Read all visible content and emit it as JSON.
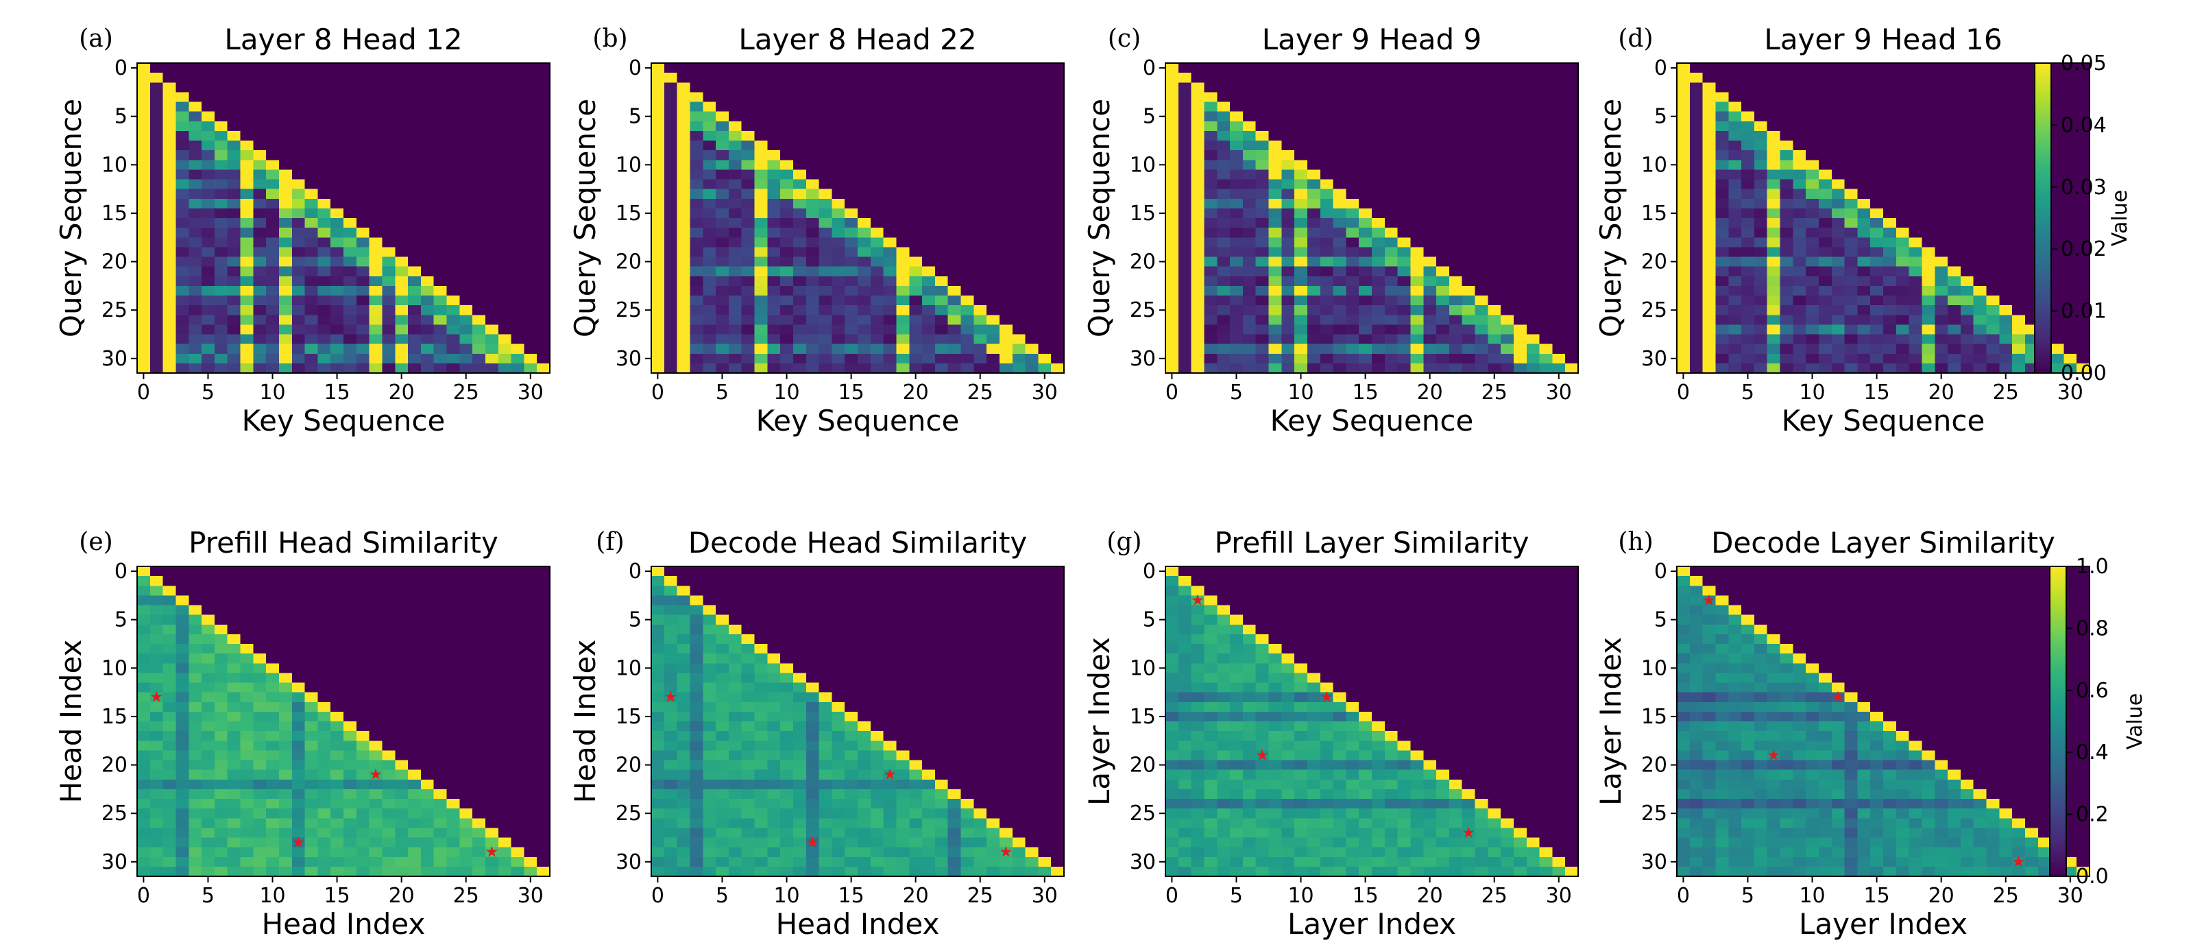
{
  "figure": {
    "colorbar_top": {
      "label": "Value",
      "min": 0.0,
      "max": 0.05,
      "ticks": [
        "0.00",
        "0.01",
        "0.02",
        "0.03",
        "0.04",
        "0.05"
      ]
    },
    "colorbar_bottom": {
      "label": "Value",
      "min": 0.0,
      "max": 1.0,
      "ticks": [
        "0.0",
        "0.2",
        "0.4",
        "0.6",
        "0.8",
        "1.0"
      ]
    },
    "tick_labels": [
      "0",
      "5",
      "10",
      "15",
      "20",
      "25",
      "30"
    ],
    "colormap_colors": [
      "#440154",
      "#482878",
      "#3e4989",
      "#31688e",
      "#26828e",
      "#1f9e89",
      "#35b779",
      "#6ece58",
      "#b5de2b",
      "#fde725"
    ],
    "marker_color": "#e41a1c"
  },
  "chart_data": [
    {
      "type": "heatmap",
      "letter": "(a)",
      "title": "Layer 8 Head 12",
      "xlabel": "Key Sequence",
      "ylabel": "Query Sequence",
      "size": 32,
      "xlim": [
        0,
        31
      ],
      "ylim": [
        31,
        0
      ],
      "vmin": 0.0,
      "vmax": 0.05,
      "sink_columns": [
        0,
        2
      ],
      "hot_columns": [
        8,
        11,
        18,
        20
      ],
      "hot_rows": [
        10,
        12,
        14,
        20,
        23,
        29,
        30
      ],
      "markers": [],
      "seed": 11
    },
    {
      "type": "heatmap",
      "letter": "(b)",
      "title": "Layer 8 Head 22",
      "xlabel": "Key Sequence",
      "ylabel": "Query Sequence",
      "size": 32,
      "xlim": [
        0,
        31
      ],
      "ylim": [
        31,
        0
      ],
      "vmin": 0.0,
      "vmax": 0.05,
      "sink_columns": [
        0,
        2
      ],
      "hot_columns": [
        8,
        19,
        27
      ],
      "hot_rows": [
        10,
        13,
        21,
        29
      ],
      "markers": [],
      "seed": 22
    },
    {
      "type": "heatmap",
      "letter": "(c)",
      "title": "Layer 9 Head 9",
      "xlabel": "Key Sequence",
      "ylabel": "Query Sequence",
      "size": 32,
      "xlim": [
        0,
        31
      ],
      "ylim": [
        31,
        0
      ],
      "vmin": 0.0,
      "vmax": 0.05,
      "sink_columns": [
        0,
        2
      ],
      "hot_columns": [
        8,
        10,
        19,
        27
      ],
      "hot_rows": [
        10,
        14,
        20,
        23,
        29
      ],
      "markers": [],
      "seed": 9
    },
    {
      "type": "heatmap",
      "letter": "(d)",
      "title": "Layer 9 Head 16",
      "xlabel": "Key Sequence",
      "ylabel": "Query Sequence",
      "size": 32,
      "xlim": [
        0,
        31
      ],
      "ylim": [
        31,
        0
      ],
      "vmin": 0.0,
      "vmax": 0.05,
      "sink_columns": [
        0,
        2
      ],
      "hot_columns": [
        7,
        19,
        26
      ],
      "hot_rows": [
        10,
        20,
        27
      ],
      "markers": [],
      "seed": 16
    },
    {
      "type": "heatmap",
      "letter": "(e)",
      "title": "Prefill Head Similarity",
      "xlabel": "Head Index",
      "ylabel": "Head Index",
      "size": 32,
      "xlim": [
        0,
        31
      ],
      "ylim": [
        31,
        0
      ],
      "vmin": 0.0,
      "vmax": 1.0,
      "base": 0.66,
      "dark_rows": [
        3,
        22
      ],
      "dark_cols": [
        3,
        12
      ],
      "markers": [
        [
          1,
          13
        ],
        [
          18,
          21
        ],
        [
          12,
          28
        ],
        [
          27,
          29
        ]
      ],
      "seed": 5
    },
    {
      "type": "heatmap",
      "letter": "(f)",
      "title": "Decode Head Similarity",
      "xlabel": "Head Index",
      "ylabel": "Head Index",
      "size": 32,
      "xlim": [
        0,
        31
      ],
      "ylim": [
        31,
        0
      ],
      "vmin": 0.0,
      "vmax": 1.0,
      "base": 0.6,
      "dark_rows": [
        3,
        22
      ],
      "dark_cols": [
        3,
        12,
        23
      ],
      "markers": [
        [
          1,
          13
        ],
        [
          18,
          21
        ],
        [
          12,
          28
        ],
        [
          27,
          29
        ]
      ],
      "seed": 6
    },
    {
      "type": "heatmap",
      "letter": "(g)",
      "title": "Prefill Layer Similarity",
      "xlabel": "Layer Index",
      "ylabel": "Layer Index",
      "size": 32,
      "xlim": [
        0,
        31
      ],
      "ylim": [
        31,
        0
      ],
      "vmin": 0.0,
      "vmax": 1.0,
      "base": 0.6,
      "dark_rows": [
        13,
        15,
        20,
        24
      ],
      "dark_cols": [],
      "markers": [
        [
          2,
          3
        ],
        [
          12,
          13
        ],
        [
          7,
          19
        ],
        [
          23,
          27
        ]
      ],
      "seed": 7
    },
    {
      "type": "heatmap",
      "letter": "(h)",
      "title": "Decode Layer Similarity",
      "xlabel": "Layer Index",
      "ylabel": "Layer Index",
      "size": 32,
      "xlim": [
        0,
        31
      ],
      "ylim": [
        31,
        0
      ],
      "vmin": 0.0,
      "vmax": 1.0,
      "base": 0.5,
      "dark_rows": [
        13,
        15,
        20,
        24
      ],
      "dark_cols": [
        13
      ],
      "markers": [
        [
          2,
          3
        ],
        [
          12,
          13
        ],
        [
          7,
          19
        ],
        [
          26,
          30
        ]
      ],
      "seed": 8
    }
  ]
}
